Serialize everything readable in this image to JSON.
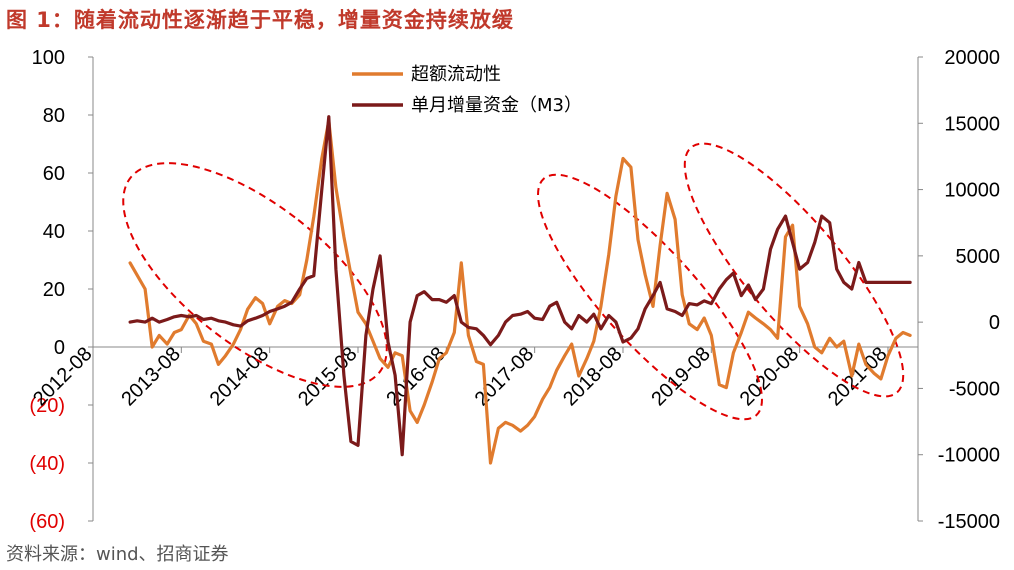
{
  "title": "图 1：随着流动性逐渐趋于平稳，增量资金持续放缓",
  "source": "资料来源：wind、招商证券",
  "colors": {
    "title": "#c0392b",
    "excess": "#E07B2E",
    "m3": "#7B1A1A",
    "negative_left": "#e00000",
    "ellipse": "#e00000"
  },
  "chart_data": {
    "type": "line",
    "x_tick_labels": [
      "2012-08",
      "2013-08",
      "2014-08",
      "2015-08",
      "2016-08",
      "2017-08",
      "2018-08",
      "2019-08",
      "2020-08",
      "2021-08"
    ],
    "y_left": {
      "lim": [
        -60,
        100
      ],
      "ticks": [
        100,
        80,
        60,
        40,
        20,
        0,
        -20,
        -40,
        -60
      ],
      "tick_labels": [
        "100",
        "80",
        "60",
        "40",
        "20",
        "0",
        "(20)",
        "(40)",
        "(60)"
      ]
    },
    "y_right": {
      "lim": [
        -15000,
        20000
      ],
      "ticks": [
        20000,
        15000,
        10000,
        5000,
        0,
        -5000,
        -10000,
        -15000
      ],
      "tick_labels": [
        "20000",
        "15000",
        "10000",
        "5000",
        "0",
        "-5000",
        "-10000",
        "-15000"
      ]
    },
    "legend": [
      "超额流动性",
      "单月增量资金（M3）"
    ],
    "series": [
      {
        "name": "超额流动性",
        "axis": "left",
        "x": [
          2013.0,
          2013.17,
          2013.25,
          2013.33,
          2013.42,
          2013.5,
          2013.58,
          2013.67,
          2013.75,
          2013.83,
          2013.92,
          2014.0,
          2014.08,
          2014.17,
          2014.25,
          2014.33,
          2014.42,
          2014.5,
          2014.58,
          2014.67,
          2014.75,
          2014.83,
          2014.92,
          2015.0,
          2015.08,
          2015.17,
          2015.25,
          2015.33,
          2015.42,
          2015.5,
          2015.58,
          2015.67,
          2015.75,
          2015.83,
          2015.92,
          2016.0,
          2016.08,
          2016.17,
          2016.25,
          2016.33,
          2016.42,
          2016.5,
          2016.58,
          2016.67,
          2016.75,
          2016.83,
          2016.92,
          2017.0,
          2017.08,
          2017.17,
          2017.25,
          2017.33,
          2017.42,
          2017.5,
          2017.58,
          2017.67,
          2017.75,
          2017.83,
          2017.92,
          2018.0,
          2018.08,
          2018.17,
          2018.25,
          2018.33,
          2018.42,
          2018.5,
          2018.58,
          2018.67,
          2018.75,
          2018.83,
          2018.92,
          2019.0,
          2019.08,
          2019.17,
          2019.25,
          2019.33,
          2019.42,
          2019.5,
          2019.58,
          2019.67,
          2019.75,
          2019.83,
          2019.92,
          2020.0,
          2020.08,
          2020.17,
          2020.25,
          2020.33,
          2020.42,
          2020.5,
          2020.58,
          2020.67,
          2020.75,
          2020.83,
          2020.92,
          2021.0,
          2021.08,
          2021.17,
          2021.25,
          2021.33,
          2021.42,
          2021.5,
          2021.58,
          2021.67,
          2021.75,
          2021.83
        ],
        "y": [
          29,
          20,
          0,
          4,
          1,
          5,
          6,
          11,
          8,
          2,
          1,
          -6,
          -3,
          1,
          6,
          13,
          17,
          15,
          8,
          14,
          16,
          15,
          18,
          30,
          45,
          65,
          78,
          55,
          38,
          25,
          12,
          8,
          2,
          -4,
          -7,
          -2,
          -3,
          -22,
          -26,
          -20,
          -12,
          -4,
          -2,
          5,
          29,
          4,
          -5,
          -6,
          -40,
          -28,
          -26,
          -27,
          -29,
          -27,
          -24,
          -18,
          -14,
          -8,
          -3,
          1,
          -10,
          -4,
          2,
          14,
          32,
          52,
          65,
          62,
          37,
          25,
          14,
          35,
          53,
          44,
          18,
          8,
          6,
          10,
          4,
          -13,
          -14,
          -2,
          5,
          12,
          10,
          8,
          6,
          3,
          38,
          42,
          14,
          8,
          0,
          -2,
          3,
          0,
          2,
          -10,
          1,
          -6,
          -9,
          -11,
          -3,
          3,
          5,
          4
        ]
      },
      {
        "name": "单月增量资金（M3）",
        "axis": "right",
        "x": [
          2013.0,
          2013.08,
          2013.17,
          2013.25,
          2013.33,
          2013.42,
          2013.5,
          2013.58,
          2013.67,
          2013.75,
          2013.83,
          2013.92,
          2014.0,
          2014.08,
          2014.17,
          2014.25,
          2014.33,
          2014.42,
          2014.5,
          2014.58,
          2014.67,
          2014.75,
          2014.83,
          2014.92,
          2015.0,
          2015.08,
          2015.17,
          2015.25,
          2015.33,
          2015.42,
          2015.5,
          2015.58,
          2015.67,
          2015.75,
          2015.83,
          2015.92,
          2016.0,
          2016.08,
          2016.17,
          2016.25,
          2016.33,
          2016.42,
          2016.5,
          2016.58,
          2016.67,
          2016.75,
          2016.83,
          2016.92,
          2017.0,
          2017.08,
          2017.17,
          2017.25,
          2017.33,
          2017.42,
          2017.5,
          2017.58,
          2017.67,
          2017.75,
          2017.83,
          2017.92,
          2018.0,
          2018.08,
          2018.17,
          2018.25,
          2018.33,
          2018.42,
          2018.5,
          2018.58,
          2018.67,
          2018.75,
          2018.83,
          2018.92,
          2019.0,
          2019.08,
          2019.17,
          2019.25,
          2019.33,
          2019.42,
          2019.5,
          2019.58,
          2019.67,
          2019.75,
          2019.83,
          2019.92,
          2020.0,
          2020.08,
          2020.17,
          2020.25,
          2020.33,
          2020.42,
          2020.5,
          2020.58,
          2020.67,
          2020.75,
          2020.83,
          2020.92,
          2021.0,
          2021.08,
          2021.17,
          2021.25,
          2021.33,
          2021.42,
          2021.5,
          2021.58,
          2021.67,
          2021.75,
          2021.83
        ],
        "y": [
          0,
          100,
          0,
          300,
          0,
          200,
          400,
          500,
          400,
          500,
          200,
          300,
          100,
          0,
          -200,
          -300,
          100,
          300,
          500,
          800,
          1000,
          1200,
          1500,
          2500,
          3300,
          3500,
          10000,
          15500,
          4000,
          -4000,
          -9000,
          -9300,
          -1000,
          2500,
          5000,
          -1500,
          -4000,
          -10000,
          0,
          2000,
          2300,
          1700,
          1700,
          1500,
          2000,
          0,
          -400,
          -500,
          -1000,
          -1700,
          -1000,
          0,
          500,
          600,
          800,
          300,
          200,
          1200,
          1500,
          0,
          -500,
          500,
          0,
          600,
          -500,
          500,
          0,
          -1500,
          -1200,
          -500,
          1000,
          2000,
          3000,
          1000,
          800,
          500,
          1400,
          1300,
          1600,
          1400,
          2500,
          3200,
          3700,
          2000,
          2800,
          1700,
          2500,
          5500,
          7000,
          8000,
          6000,
          4000,
          4500,
          6000,
          8000,
          7500,
          4000,
          3000,
          2500,
          4500,
          3000,
          3000,
          3000,
          3000,
          3000,
          3000,
          3000
        ]
      }
    ],
    "annotations": "dashed red ellipses highlighting periods of co-movement"
  }
}
